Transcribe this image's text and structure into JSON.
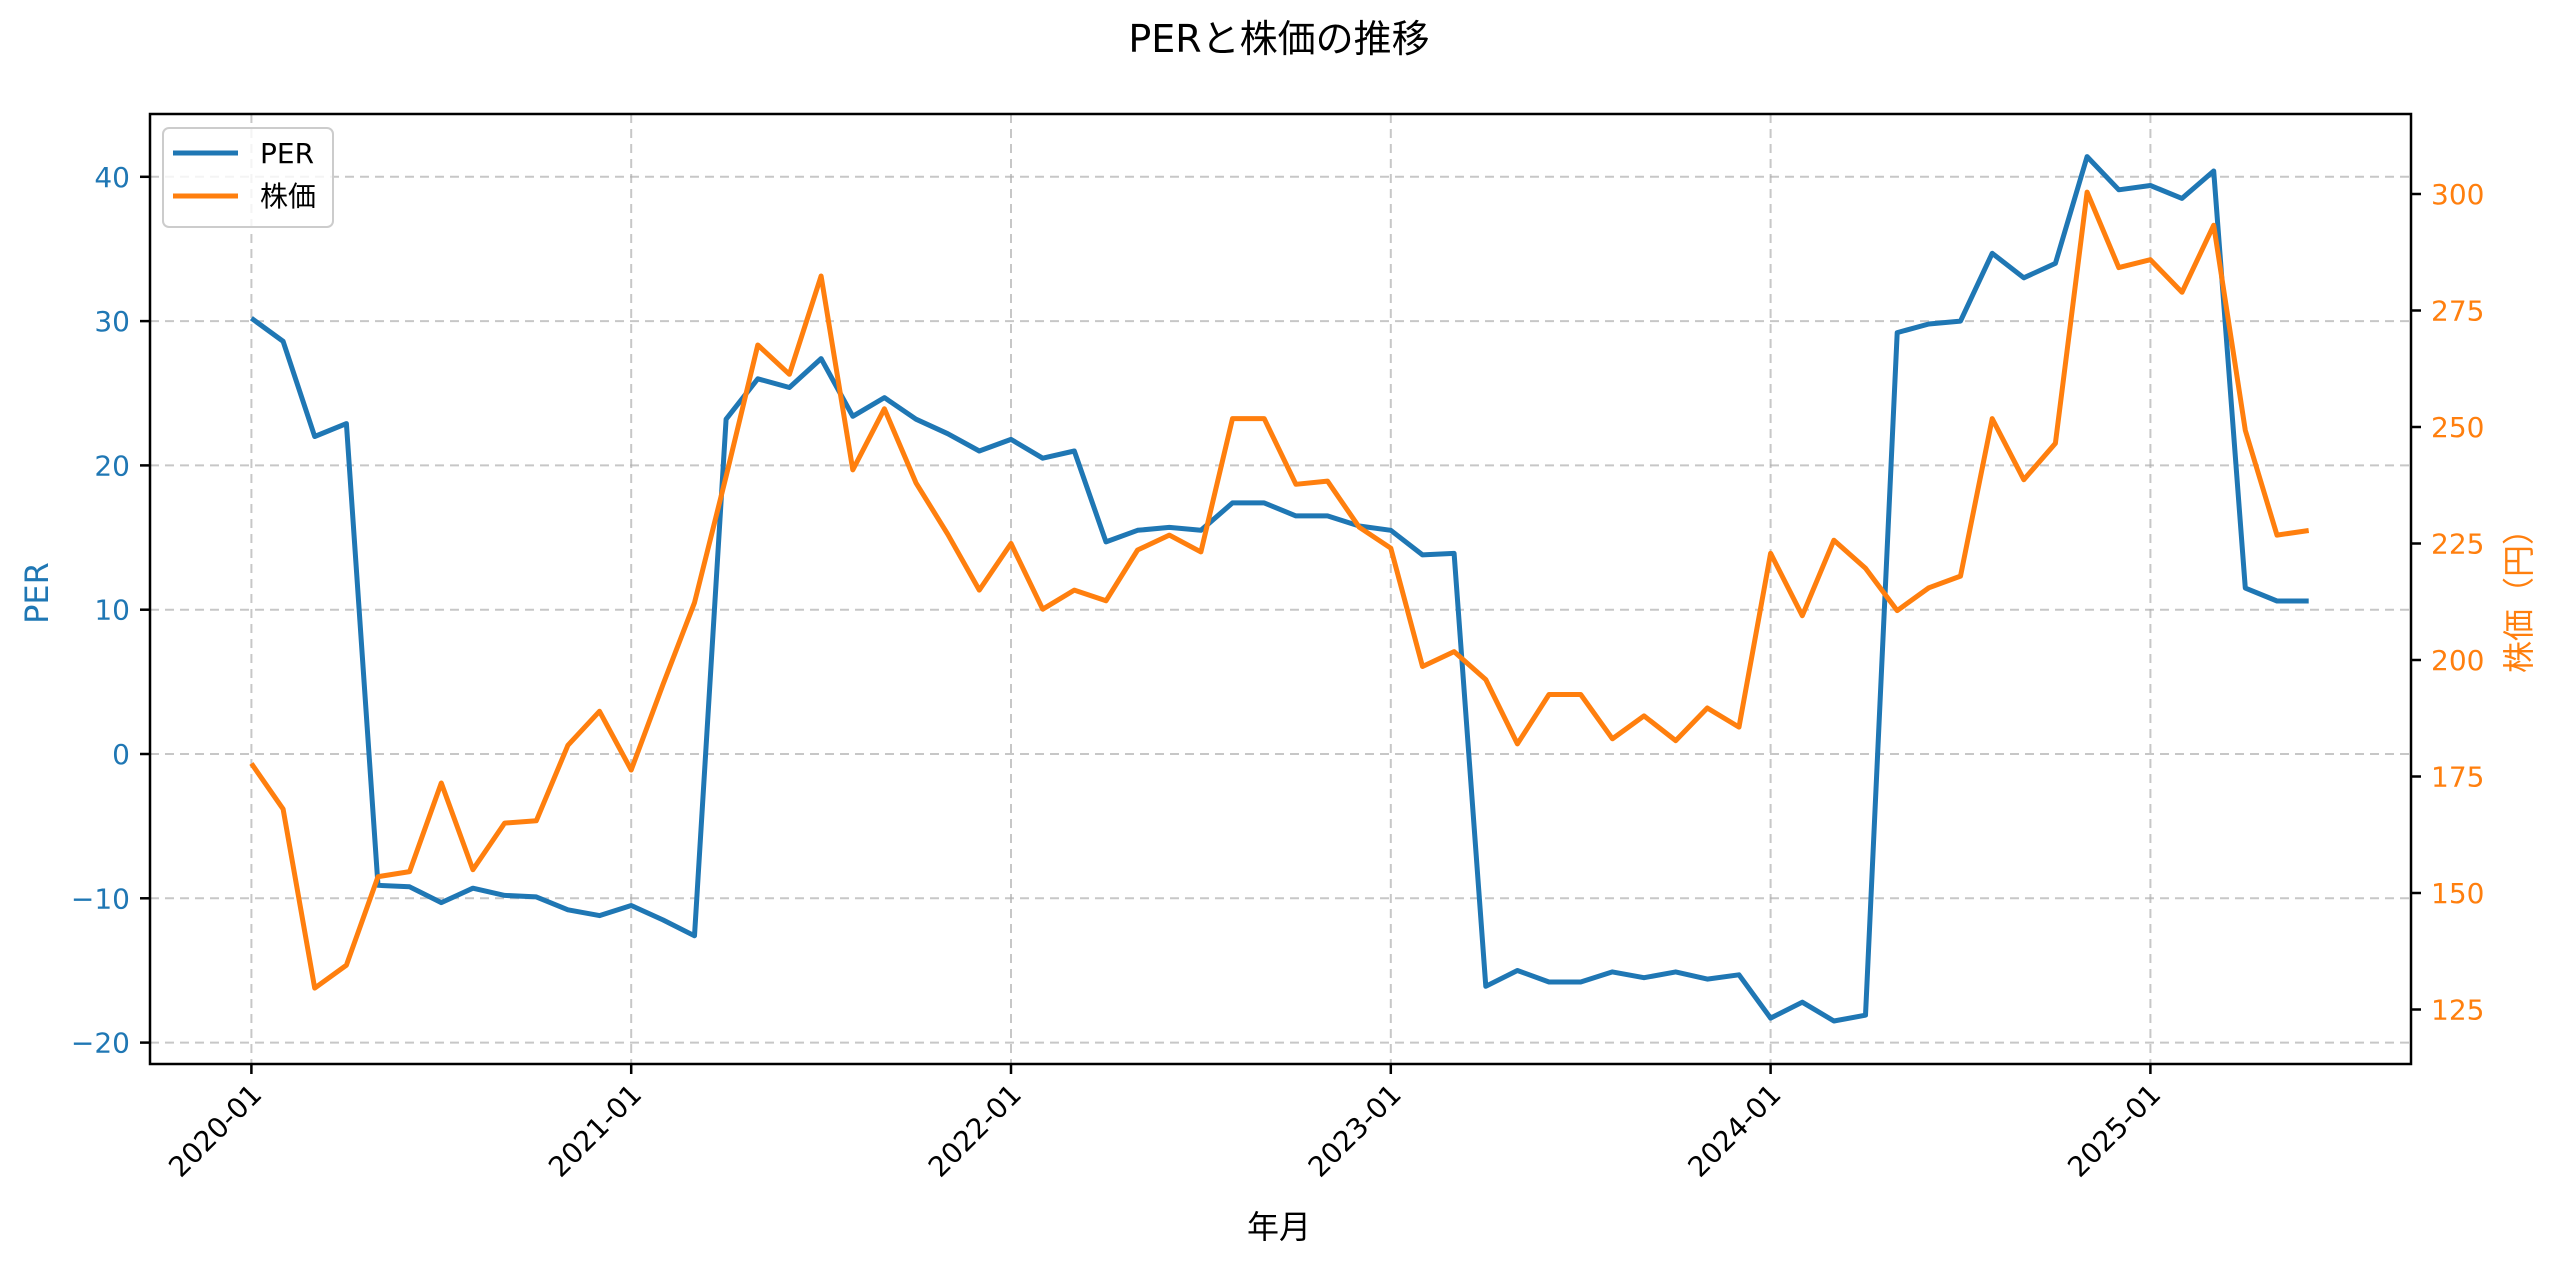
{
  "chart_data": {
    "type": "line",
    "title": "PERと株価の推移",
    "xlabel": "年月",
    "ylabel_left": "PER",
    "ylabel_right": "株価（円）",
    "grid": true,
    "legend_position": "upper left",
    "x_tick_labels": [
      "2020-01",
      "2021-01",
      "2022-01",
      "2023-01",
      "2024-01",
      "2025-01"
    ],
    "y_left_ticks": [
      -20,
      -10,
      0,
      10,
      20,
      30,
      40
    ],
    "y_right_ticks": [
      125,
      150,
      175,
      200,
      225,
      250,
      275,
      300
    ],
    "ylim_left": [
      -21.3,
      44.2
    ],
    "ylim_right": [
      113,
      310
    ],
    "x": [
      "2020-01",
      "2020-02",
      "2020-03",
      "2020-04",
      "2020-05",
      "2020-06",
      "2020-07",
      "2020-08",
      "2020-09",
      "2020-10",
      "2020-11",
      "2020-12",
      "2021-01",
      "2021-02",
      "2021-03",
      "2021-04",
      "2021-05",
      "2021-06",
      "2021-07",
      "2021-08",
      "2021-09",
      "2021-10",
      "2021-11",
      "2021-12",
      "2022-01",
      "2022-02",
      "2022-03",
      "2022-04",
      "2022-05",
      "2022-06",
      "2022-07",
      "2022-08",
      "2022-09",
      "2022-10",
      "2022-11",
      "2022-12",
      "2023-01",
      "2023-02",
      "2023-03",
      "2023-04",
      "2023-05",
      "2023-06",
      "2023-07",
      "2023-08",
      "2023-09",
      "2023-10",
      "2023-11",
      "2023-12",
      "2024-01",
      "2024-02",
      "2024-03",
      "2024-04",
      "2024-05",
      "2024-06",
      "2024-07",
      "2024-08",
      "2024-09",
      "2024-10",
      "2024-11",
      "2024-12",
      "2025-01",
      "2025-02",
      "2025-03",
      "2025-04",
      "2025-05",
      "2025-06"
    ],
    "series": [
      {
        "name": "PER",
        "axis": "left",
        "color": "#1f77b4",
        "values": [
          30.2,
          28.6,
          22.0,
          22.9,
          -9.1,
          -9.2,
          -10.3,
          -9.3,
          -9.8,
          -9.9,
          -10.8,
          -11.2,
          -10.5,
          -11.5,
          -12.6,
          23.2,
          26.0,
          25.4,
          27.4,
          23.4,
          24.7,
          23.2,
          22.2,
          21.0,
          21.8,
          20.5,
          21.0,
          14.7,
          15.5,
          15.7,
          15.5,
          17.4,
          17.4,
          16.5,
          16.5,
          15.8,
          15.5,
          13.8,
          13.9,
          -16.1,
          -15.0,
          -15.8,
          -15.8,
          -15.1,
          -15.5,
          -15.1,
          -15.6,
          -15.3,
          -18.3,
          -17.2,
          -18.5,
          -18.1,
          29.2,
          29.8,
          30.0,
          34.7,
          33.0,
          34.0,
          41.4,
          39.1,
          39.4,
          38.5,
          40.4,
          11.5,
          10.6,
          10.6
        ]
      },
      {
        "name": "株価",
        "axis": "right",
        "color": "#ff7f0e",
        "values": [
          177.8,
          168.0,
          129.6,
          134.5,
          153.5,
          154.6,
          173.6,
          155.0,
          165.0,
          165.5,
          181.7,
          189.0,
          176.4,
          194.7,
          212.3,
          239.4,
          267.6,
          261.3,
          282.4,
          240.8,
          253.9,
          238.0,
          227.0,
          215.0,
          225.0,
          210.9,
          215.0,
          212.7,
          223.6,
          226.8,
          223.2,
          251.8,
          251.8,
          237.7,
          238.4,
          228.5,
          224.0,
          198.6,
          201.8,
          195.8,
          182.0,
          192.6,
          192.6,
          183.1,
          188.0,
          182.7,
          189.7,
          185.6,
          222.9,
          209.5,
          225.7,
          219.7,
          210.6,
          215.5,
          218.0,
          251.8,
          238.7,
          246.5,
          300.4,
          284.2,
          285.9,
          278.9,
          293.3,
          249.3,
          226.8,
          227.8
        ]
      }
    ]
  },
  "legend": {
    "items": [
      {
        "label": "PER",
        "color": "#1f77b4"
      },
      {
        "label": "株価",
        "color": "#ff7f0e"
      }
    ]
  }
}
